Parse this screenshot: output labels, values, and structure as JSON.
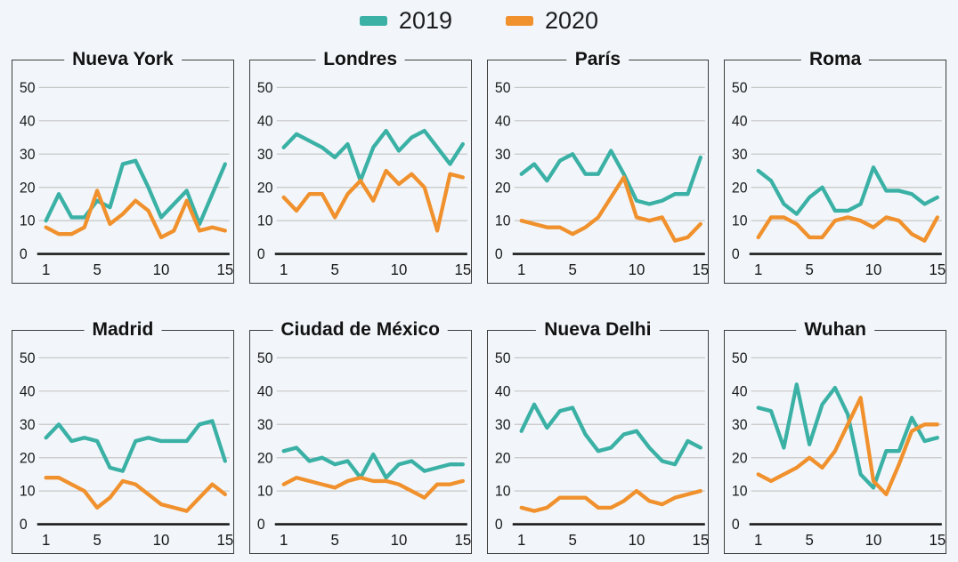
{
  "legend": {
    "items": [
      {
        "label": "2019",
        "color": "#3bb1a6"
      },
      {
        "label": "2020",
        "color": "#f0912d"
      }
    ]
  },
  "style": {
    "background": "#f2f6fa",
    "panel_border": "#3d3d3d",
    "gridline_color": "#c6c6c6",
    "axis_color": "#1a1a1a",
    "tick_text_color": "#1a1a1a"
  },
  "chart_data": [
    {
      "type": "line",
      "title": "Nueva York",
      "x": [
        1,
        2,
        3,
        4,
        5,
        6,
        7,
        8,
        9,
        10,
        11,
        12,
        13,
        14,
        15
      ],
      "xticks": [
        1,
        5,
        10,
        15
      ],
      "yticks": [
        0,
        10,
        20,
        30,
        40,
        50
      ],
      "ylim": [
        0,
        55
      ],
      "series": [
        {
          "name": "2019",
          "color": "#3bb1a6",
          "values": [
            10,
            18,
            11,
            11,
            16,
            14,
            27,
            28,
            20,
            11,
            15,
            19,
            9,
            18,
            27
          ]
        },
        {
          "name": "2020",
          "color": "#f0912d",
          "values": [
            8,
            6,
            6,
            8,
            19,
            9,
            12,
            16,
            13,
            5,
            7,
            16,
            7,
            8,
            7
          ]
        }
      ]
    },
    {
      "type": "line",
      "title": "Londres",
      "x": [
        1,
        2,
        3,
        4,
        5,
        6,
        7,
        8,
        9,
        10,
        11,
        12,
        13,
        14,
        15
      ],
      "xticks": [
        1,
        5,
        10,
        15
      ],
      "yticks": [
        0,
        10,
        20,
        30,
        40,
        50
      ],
      "ylim": [
        0,
        55
      ],
      "series": [
        {
          "name": "2019",
          "color": "#3bb1a6",
          "values": [
            32,
            36,
            34,
            32,
            29,
            33,
            22,
            32,
            37,
            31,
            35,
            37,
            32,
            27,
            33
          ]
        },
        {
          "name": "2020",
          "color": "#f0912d",
          "values": [
            17,
            13,
            18,
            18,
            11,
            18,
            22,
            16,
            25,
            21,
            24,
            20,
            7,
            24,
            23
          ]
        }
      ]
    },
    {
      "type": "line",
      "title": "París",
      "x": [
        1,
        2,
        3,
        4,
        5,
        6,
        7,
        8,
        9,
        10,
        11,
        12,
        13,
        14,
        15
      ],
      "xticks": [
        1,
        5,
        10,
        15
      ],
      "yticks": [
        0,
        10,
        20,
        30,
        40,
        50
      ],
      "ylim": [
        0,
        55
      ],
      "series": [
        {
          "name": "2019",
          "color": "#3bb1a6",
          "values": [
            24,
            27,
            22,
            28,
            30,
            24,
            24,
            31,
            24,
            16,
            15,
            16,
            18,
            18,
            29
          ]
        },
        {
          "name": "2020",
          "color": "#f0912d",
          "values": [
            10,
            9,
            8,
            8,
            6,
            8,
            11,
            17,
            23,
            11,
            10,
            11,
            4,
            5,
            9
          ]
        }
      ]
    },
    {
      "type": "line",
      "title": "Roma",
      "x": [
        1,
        2,
        3,
        4,
        5,
        6,
        7,
        8,
        9,
        10,
        11,
        12,
        13,
        14,
        15
      ],
      "xticks": [
        1,
        5,
        10,
        15
      ],
      "yticks": [
        0,
        10,
        20,
        30,
        40,
        50
      ],
      "ylim": [
        0,
        55
      ],
      "series": [
        {
          "name": "2019",
          "color": "#3bb1a6",
          "values": [
            25,
            22,
            15,
            12,
            17,
            20,
            13,
            13,
            15,
            26,
            19,
            19,
            18,
            15,
            17
          ]
        },
        {
          "name": "2020",
          "color": "#f0912d",
          "values": [
            5,
            11,
            11,
            9,
            5,
            5,
            10,
            11,
            10,
            8,
            11,
            10,
            6,
            4,
            11
          ]
        }
      ]
    },
    {
      "type": "line",
      "title": "Madrid",
      "x": [
        1,
        2,
        3,
        4,
        5,
        6,
        7,
        8,
        9,
        10,
        11,
        12,
        13,
        14,
        15
      ],
      "xticks": [
        1,
        5,
        10,
        15
      ],
      "yticks": [
        0,
        10,
        20,
        30,
        40,
        50
      ],
      "ylim": [
        0,
        55
      ],
      "series": [
        {
          "name": "2019",
          "color": "#3bb1a6",
          "values": [
            26,
            30,
            25,
            26,
            25,
            17,
            16,
            25,
            26,
            25,
            25,
            25,
            30,
            31,
            19
          ]
        },
        {
          "name": "2020",
          "color": "#f0912d",
          "values": [
            14,
            14,
            12,
            10,
            5,
            8,
            13,
            12,
            9,
            6,
            5,
            4,
            8,
            12,
            9
          ]
        }
      ]
    },
    {
      "type": "line",
      "title": "Ciudad de México",
      "x": [
        1,
        2,
        3,
        4,
        5,
        6,
        7,
        8,
        9,
        10,
        11,
        12,
        13,
        14,
        15
      ],
      "xticks": [
        1,
        5,
        10,
        15
      ],
      "yticks": [
        0,
        10,
        20,
        30,
        40,
        50
      ],
      "ylim": [
        0,
        55
      ],
      "series": [
        {
          "name": "2019",
          "color": "#3bb1a6",
          "values": [
            22,
            23,
            19,
            20,
            18,
            19,
            14,
            21,
            14,
            18,
            19,
            16,
            17,
            18,
            18
          ]
        },
        {
          "name": "2020",
          "color": "#f0912d",
          "values": [
            12,
            14,
            13,
            12,
            11,
            13,
            14,
            13,
            13,
            12,
            10,
            8,
            12,
            12,
            13
          ]
        }
      ]
    },
    {
      "type": "line",
      "title": "Nueva Delhi",
      "x": [
        1,
        2,
        3,
        4,
        5,
        6,
        7,
        8,
        9,
        10,
        11,
        12,
        13,
        14,
        15
      ],
      "xticks": [
        1,
        5,
        10,
        15
      ],
      "yticks": [
        0,
        10,
        20,
        30,
        40,
        50
      ],
      "ylim": [
        0,
        55
      ],
      "series": [
        {
          "name": "2019",
          "color": "#3bb1a6",
          "values": [
            28,
            36,
            29,
            34,
            35,
            27,
            22,
            23,
            27,
            28,
            23,
            19,
            18,
            25,
            23
          ]
        },
        {
          "name": "2020",
          "color": "#f0912d",
          "values": [
            5,
            4,
            5,
            8,
            8,
            8,
            5,
            5,
            7,
            10,
            7,
            6,
            8,
            9,
            10
          ]
        }
      ]
    },
    {
      "type": "line",
      "title": "Wuhan",
      "x": [
        1,
        2,
        3,
        4,
        5,
        6,
        7,
        8,
        9,
        10,
        11,
        12,
        13,
        14,
        15
      ],
      "xticks": [
        1,
        5,
        10,
        15
      ],
      "yticks": [
        0,
        10,
        20,
        30,
        40,
        50
      ],
      "ylim": [
        0,
        55
      ],
      "series": [
        {
          "name": "2019",
          "color": "#3bb1a6",
          "values": [
            35,
            34,
            23,
            42,
            24,
            36,
            41,
            33,
            15,
            11,
            22,
            22,
            32,
            25,
            26
          ]
        },
        {
          "name": "2020",
          "color": "#f0912d",
          "values": [
            15,
            13,
            15,
            17,
            20,
            17,
            22,
            30,
            38,
            13,
            9,
            18,
            28,
            30,
            30
          ]
        }
      ]
    }
  ]
}
